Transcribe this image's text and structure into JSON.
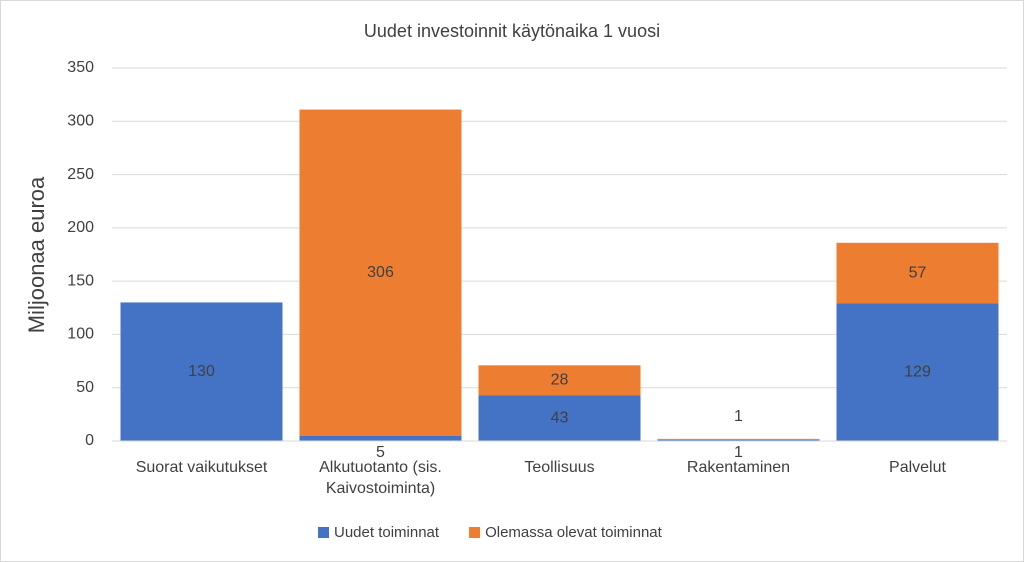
{
  "chart_data": {
    "type": "stacked_bar",
    "title": "Uudet investoinnit käytönaika 1 vuosi",
    "y_label": "Miljoonaa euroa",
    "categories": [
      "Suorat vaikutukset",
      "Alkutuotanto (sis. Kaivostoiminta)",
      "Teollisuus",
      "Rakentaminen",
      "Palvelut"
    ],
    "series": [
      {
        "name": "Uudet toiminnat",
        "color": "#4472c4",
        "values": [
          130,
          5,
          43,
          1,
          129
        ]
      },
      {
        "name": "Olemassa olevat toiminnat",
        "color": "#ed7d31",
        "values": [
          null,
          306,
          28,
          1,
          57
        ]
      }
    ],
    "ylim": [
      0,
      350
    ],
    "yticks": [
      0,
      50,
      100,
      150,
      200,
      250,
      300,
      350
    ],
    "grid": true,
    "legend": "bottom"
  }
}
